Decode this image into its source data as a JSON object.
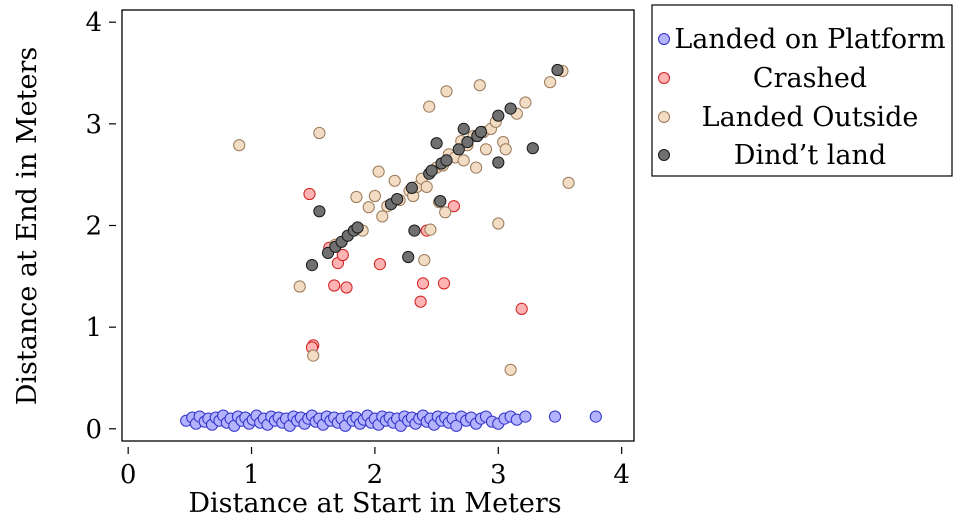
{
  "chart_data": {
    "type": "scatter",
    "title": "",
    "xlabel": "Distance at Start in Meters",
    "ylabel": "Distance at End in Meters",
    "xlim": [
      -0.05,
      4.1
    ],
    "ylim": [
      -0.12,
      4.12
    ],
    "x_ticks": [
      0,
      1,
      2,
      3,
      4
    ],
    "x_tick_labels": [
      "0",
      "1",
      "2",
      "3",
      "4"
    ],
    "y_ticks": [
      0,
      1,
      2,
      3,
      4
    ],
    "y_tick_labels": [
      "0",
      "1",
      "2",
      "3",
      "4"
    ],
    "grid": false,
    "legend_position": "outside-top-right",
    "series": [
      {
        "name": "Landed on Platform",
        "color": "#b3b3ff",
        "edge": "#3030c8",
        "points": [
          [
            0.47,
            0.08
          ],
          [
            0.52,
            0.11
          ],
          [
            0.55,
            0.05
          ],
          [
            0.58,
            0.12
          ],
          [
            0.62,
            0.07
          ],
          [
            0.65,
            0.1
          ],
          [
            0.68,
            0.04
          ],
          [
            0.71,
            0.11
          ],
          [
            0.74,
            0.08
          ],
          [
            0.77,
            0.13
          ],
          [
            0.8,
            0.06
          ],
          [
            0.83,
            0.1
          ],
          [
            0.86,
            0.03
          ],
          [
            0.89,
            0.12
          ],
          [
            0.92,
            0.08
          ],
          [
            0.95,
            0.11
          ],
          [
            0.98,
            0.05
          ],
          [
            1.01,
            0.09
          ],
          [
            1.04,
            0.13
          ],
          [
            1.07,
            0.06
          ],
          [
            1.1,
            0.1
          ],
          [
            1.13,
            0.04
          ],
          [
            1.16,
            0.12
          ],
          [
            1.19,
            0.08
          ],
          [
            1.22,
            0.11
          ],
          [
            1.25,
            0.06
          ],
          [
            1.28,
            0.1
          ],
          [
            1.31,
            0.03
          ],
          [
            1.34,
            0.12
          ],
          [
            1.37,
            0.08
          ],
          [
            1.4,
            0.11
          ],
          [
            1.43,
            0.05
          ],
          [
            1.46,
            0.1
          ],
          [
            1.49,
            0.13
          ],
          [
            1.52,
            0.07
          ],
          [
            1.55,
            0.1
          ],
          [
            1.58,
            0.04
          ],
          [
            1.61,
            0.12
          ],
          [
            1.64,
            0.08
          ],
          [
            1.67,
            0.11
          ],
          [
            1.7,
            0.06
          ],
          [
            1.73,
            0.1
          ],
          [
            1.76,
            0.03
          ],
          [
            1.79,
            0.12
          ],
          [
            1.82,
            0.08
          ],
          [
            1.85,
            0.11
          ],
          [
            1.88,
            0.05
          ],
          [
            1.91,
            0.09
          ],
          [
            1.94,
            0.13
          ],
          [
            1.97,
            0.06
          ],
          [
            2.0,
            0.1
          ],
          [
            2.03,
            0.04
          ],
          [
            2.06,
            0.12
          ],
          [
            2.09,
            0.08
          ],
          [
            2.12,
            0.11
          ],
          [
            2.15,
            0.06
          ],
          [
            2.18,
            0.1
          ],
          [
            2.21,
            0.03
          ],
          [
            2.24,
            0.12
          ],
          [
            2.27,
            0.08
          ],
          [
            2.3,
            0.11
          ],
          [
            2.33,
            0.05
          ],
          [
            2.36,
            0.1
          ],
          [
            2.39,
            0.13
          ],
          [
            2.42,
            0.07
          ],
          [
            2.45,
            0.1
          ],
          [
            2.48,
            0.04
          ],
          [
            2.51,
            0.12
          ],
          [
            2.54,
            0.08
          ],
          [
            2.57,
            0.11
          ],
          [
            2.6,
            0.06
          ],
          [
            2.63,
            0.1
          ],
          [
            2.66,
            0.03
          ],
          [
            2.7,
            0.12
          ],
          [
            2.74,
            0.08
          ],
          [
            2.78,
            0.11
          ],
          [
            2.82,
            0.05
          ],
          [
            2.86,
            0.1
          ],
          [
            2.9,
            0.12
          ],
          [
            2.95,
            0.07
          ],
          [
            3.0,
            0.05
          ],
          [
            3.05,
            0.1
          ],
          [
            3.1,
            0.12
          ],
          [
            3.15,
            0.09
          ],
          [
            3.22,
            0.12
          ],
          [
            3.46,
            0.12
          ],
          [
            3.79,
            0.12
          ]
        ]
      },
      {
        "name": "Crashed",
        "color": "#ffb3b3",
        "edge": "#d02020",
        "points": [
          [
            1.47,
            2.31
          ],
          [
            1.5,
            0.82
          ],
          [
            1.49,
            0.8
          ],
          [
            1.63,
            1.78
          ],
          [
            1.67,
            1.41
          ],
          [
            1.7,
            1.63
          ],
          [
            1.74,
            1.71
          ],
          [
            1.77,
            1.39
          ],
          [
            2.04,
            1.62
          ],
          [
            2.37,
            1.25
          ],
          [
            2.39,
            1.43
          ],
          [
            2.42,
            1.95
          ],
          [
            2.56,
            1.43
          ],
          [
            2.64,
            2.19
          ],
          [
            3.19,
            1.18
          ]
        ]
      },
      {
        "name": "Landed Outside",
        "color": "#f2dcc4",
        "edge": "#9a7a5a",
        "points": [
          [
            0.9,
            2.79
          ],
          [
            1.39,
            1.4
          ],
          [
            1.5,
            0.72
          ],
          [
            1.55,
            2.91
          ],
          [
            1.68,
            1.81
          ],
          [
            1.85,
            2.28
          ],
          [
            1.9,
            1.95
          ],
          [
            1.95,
            2.18
          ],
          [
            2.0,
            2.29
          ],
          [
            2.03,
            2.53
          ],
          [
            2.06,
            2.09
          ],
          [
            2.1,
            2.19
          ],
          [
            2.16,
            2.44
          ],
          [
            2.2,
            2.25
          ],
          [
            2.28,
            2.34
          ],
          [
            2.31,
            2.29
          ],
          [
            2.34,
            2.38
          ],
          [
            2.38,
            2.46
          ],
          [
            2.4,
            1.66
          ],
          [
            2.42,
            2.38
          ],
          [
            2.44,
            3.17
          ],
          [
            2.45,
            1.96
          ],
          [
            2.5,
            2.57
          ],
          [
            2.52,
            2.23
          ],
          [
            2.55,
            2.59
          ],
          [
            2.57,
            2.13
          ],
          [
            2.58,
            3.32
          ],
          [
            2.6,
            2.7
          ],
          [
            2.65,
            2.67
          ],
          [
            2.7,
            2.83
          ],
          [
            2.72,
            2.64
          ],
          [
            2.75,
            2.79
          ],
          [
            2.8,
            2.88
          ],
          [
            2.82,
            2.57
          ],
          [
            2.85,
            3.38
          ],
          [
            2.88,
            2.92
          ],
          [
            2.9,
            2.75
          ],
          [
            2.94,
            2.95
          ],
          [
            2.98,
            3.02
          ],
          [
            3.0,
            2.02
          ],
          [
            3.04,
            2.82
          ],
          [
            3.06,
            2.75
          ],
          [
            3.1,
            0.58
          ],
          [
            3.15,
            3.1
          ],
          [
            3.22,
            3.21
          ],
          [
            3.42,
            3.41
          ],
          [
            3.52,
            3.52
          ],
          [
            3.57,
            2.42
          ]
        ]
      },
      {
        "name": "Dind’t land",
        "color": "#707070",
        "edge": "#1a1a1a",
        "points": [
          [
            1.49,
            1.61
          ],
          [
            1.55,
            2.14
          ],
          [
            1.62,
            1.73
          ],
          [
            1.68,
            1.79
          ],
          [
            1.73,
            1.84
          ],
          [
            1.78,
            1.9
          ],
          [
            1.83,
            1.95
          ],
          [
            1.86,
            1.98
          ],
          [
            2.13,
            2.21
          ],
          [
            2.18,
            2.26
          ],
          [
            2.27,
            1.69
          ],
          [
            2.3,
            2.37
          ],
          [
            2.32,
            1.95
          ],
          [
            2.44,
            2.51
          ],
          [
            2.46,
            2.54
          ],
          [
            2.5,
            2.81
          ],
          [
            2.53,
            2.24
          ],
          [
            2.54,
            2.61
          ],
          [
            2.58,
            2.64
          ],
          [
            2.68,
            2.75
          ],
          [
            2.72,
            2.95
          ],
          [
            2.75,
            2.82
          ],
          [
            2.83,
            2.88
          ],
          [
            2.86,
            2.92
          ],
          [
            3.0,
            3.08
          ],
          [
            3.0,
            2.62
          ],
          [
            3.1,
            3.15
          ],
          [
            3.28,
            2.76
          ],
          [
            3.48,
            3.53
          ]
        ]
      }
    ]
  }
}
